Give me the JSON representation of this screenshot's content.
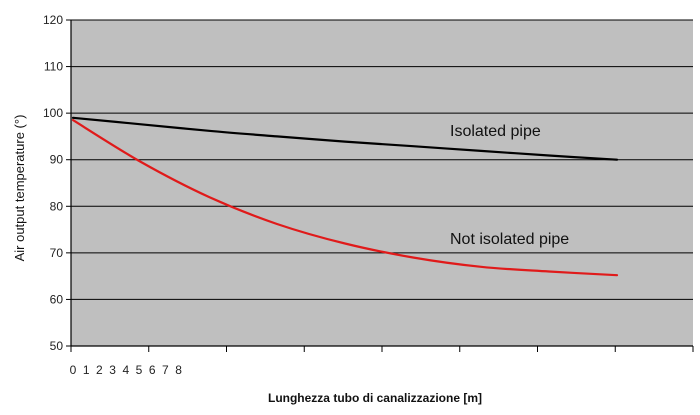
{
  "chart_data": {
    "type": "line",
    "title": "",
    "xlabel": "Lunghezza tubo di canalizzazione [m]",
    "ylabel": "Air output temperature  (°)",
    "ylim": [
      50,
      120
    ],
    "yticks": [
      50,
      60,
      70,
      80,
      90,
      100,
      110,
      120
    ],
    "xlim": [
      0,
      8
    ],
    "xtick_labels": [
      "0",
      "1",
      "2",
      "3",
      "4",
      "5",
      "6",
      "7",
      "8"
    ],
    "grid": true,
    "legend": "none",
    "series": [
      {
        "name": "Isolated pipe",
        "color": "#000000",
        "x": [
          0,
          1,
          2,
          3,
          4,
          5,
          6,
          7,
          8
        ],
        "values": [
          99,
          97.6,
          96.2,
          95,
          93.9,
          92.9,
          91.9,
          90.9,
          90
        ]
      },
      {
        "name": "Not isolated pipe",
        "color": "#e01a1a",
        "x": [
          0,
          1,
          2,
          3,
          4,
          5,
          6,
          7,
          8
        ],
        "values": [
          98.5,
          89.5,
          82,
          76.2,
          72,
          69,
          67,
          66,
          65.2
        ]
      }
    ]
  }
}
